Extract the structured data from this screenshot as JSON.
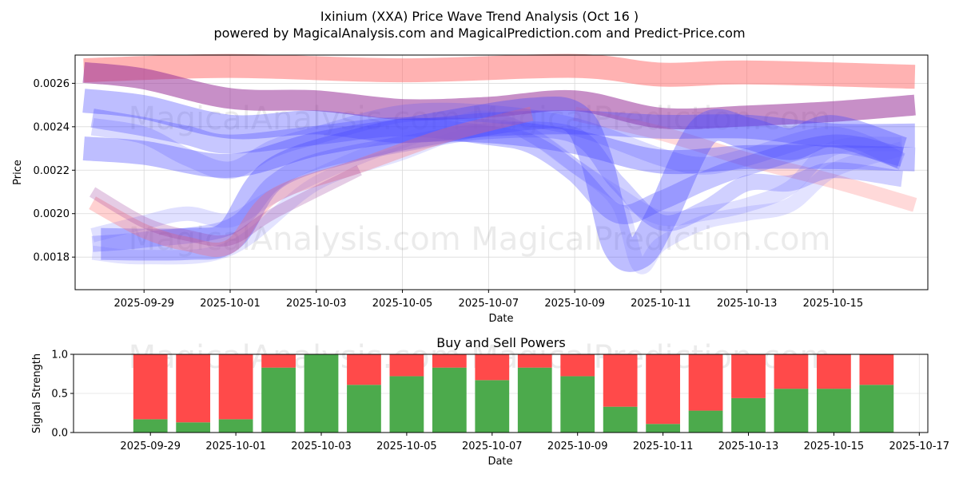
{
  "header": {
    "title": "Ixinium (XXA) Price Wave Trend Analysis (Oct 16 )",
    "subtitle": "powered by MagicalAnalysis.com and MagicalPrediction.com and Predict-Price.com"
  },
  "watermark": {
    "top_text": "MagicalAnalysis.com   MagicalPrediction.com",
    "bottom_text": "MagicalAnalysis.com   MagicalPrediction.com",
    "bar_text": "MagicalAnalysis.com   MagicalPrediction.com"
  },
  "chart_data": [
    {
      "type": "line",
      "title": "",
      "xlabel": "Date",
      "ylabel": "Price",
      "x_start": "2025-09-27",
      "xlim": [
        0.4,
        20.2
      ],
      "ylim": [
        0.00165,
        0.00273
      ],
      "yticks": [
        0.0018,
        0.002,
        0.0022,
        0.0024,
        0.0026
      ],
      "ytick_labels": [
        "0.0018",
        "0.0020",
        "0.0022",
        "0.0024",
        "0.0026"
      ],
      "xticks": [
        2,
        4,
        6,
        8,
        10,
        12,
        14,
        16,
        18
      ],
      "xtick_labels": [
        "2025-09-29",
        "2025-10-01",
        "2025-10-03",
        "2025-10-05",
        "2025-10-07",
        "2025-10-09",
        "2025-10-11",
        "2025-10-13",
        "2025-10-15"
      ],
      "grid": true,
      "series": [
        {
          "name": "red-band-top",
          "color": "#ff6666",
          "opacity": 0.5,
          "width": 30,
          "x": [
            0.6,
            4,
            8,
            12,
            14,
            16,
            19.9
          ],
          "y": [
            0.00266,
            0.00268,
            0.00266,
            0.00268,
            0.00264,
            0.00265,
            0.00263
          ]
        },
        {
          "name": "purple-band",
          "color": "#993399",
          "opacity": 0.55,
          "width": 26,
          "x": [
            0.6,
            2,
            4,
            6,
            8,
            10,
            12,
            14,
            16,
            18,
            19.9
          ],
          "y": [
            0.00265,
            0.00262,
            0.00253,
            0.00252,
            0.00248,
            0.00249,
            0.00252,
            0.00244,
            0.00245,
            0.00247,
            0.0025
          ]
        },
        {
          "name": "red-descend",
          "color": "#ff6666",
          "opacity": 0.25,
          "width": 18,
          "x": [
            12,
            14,
            16,
            18,
            19.9
          ],
          "y": [
            0.00246,
            0.00237,
            0.00225,
            0.00215,
            0.00204
          ]
        },
        {
          "name": "blue-upper",
          "color": "#4444ff",
          "opacity": 0.35,
          "width": 30,
          "x": [
            0.6,
            2,
            4,
            6,
            8,
            10,
            12,
            14,
            16,
            18,
            19.9
          ],
          "y": [
            0.00252,
            0.00249,
            0.0024,
            0.00242,
            0.00238,
            0.00241,
            0.00242,
            0.0024,
            0.0024,
            0.00236,
            0.00236
          ]
        },
        {
          "name": "blue-wide",
          "color": "#4444ff",
          "opacity": 0.35,
          "width": 30,
          "x": [
            0.6,
            2,
            4,
            6,
            8,
            10,
            12,
            14,
            16,
            18,
            19.9
          ],
          "y": [
            0.0023,
            0.00228,
            0.00222,
            0.00232,
            0.00238,
            0.00238,
            0.00233,
            0.00224,
            0.00226,
            0.00226,
            0.00225
          ]
        },
        {
          "name": "blue-wave-1",
          "color": "#4444ff",
          "opacity": 0.3,
          "width": 24,
          "x": [
            0.8,
            2,
            3,
            4,
            6,
            8,
            10,
            11,
            12,
            13,
            14,
            15,
            16,
            18,
            19.6
          ],
          "y": [
            0.00244,
            0.0024,
            0.00236,
            0.00232,
            0.00236,
            0.0024,
            0.00236,
            0.00232,
            0.00219,
            0.002,
            0.00206,
            0.00215,
            0.00222,
            0.00232,
            0.00226
          ]
        },
        {
          "name": "blue-deep-dip",
          "color": "#4444ff",
          "opacity": 0.35,
          "width": 40,
          "x": [
            1,
            3,
            4,
            5,
            7,
            9,
            11,
            12,
            12.5,
            13,
            13.5,
            14,
            15,
            16,
            17,
            18,
            19.6
          ],
          "y": [
            0.00186,
            0.00186,
            0.0019,
            0.00218,
            0.00232,
            0.0024,
            0.00246,
            0.00244,
            0.00225,
            0.00186,
            0.00182,
            0.00198,
            0.00238,
            0.00237,
            0.00232,
            0.00238,
            0.00228
          ]
        },
        {
          "name": "blue-wave-2",
          "color": "#4444ff",
          "opacity": 0.25,
          "width": 20,
          "x": [
            0.8,
            2,
            4,
            5,
            6,
            8,
            10,
            12,
            13,
            14,
            15,
            16,
            17,
            18,
            19.6
          ],
          "y": [
            0.00186,
            0.00188,
            0.00194,
            0.00214,
            0.00224,
            0.00232,
            0.00238,
            0.00236,
            0.00214,
            0.00196,
            0.00202,
            0.00214,
            0.00214,
            0.0022,
            0.00216
          ]
        },
        {
          "name": "blue-wave-3",
          "color": "#6666ff",
          "opacity": 0.2,
          "width": 18,
          "x": [
            0.8,
            2,
            3,
            4,
            5,
            7,
            9,
            10,
            11,
            12,
            13,
            14,
            15,
            16,
            17,
            18,
            19.6
          ],
          "y": [
            0.0019,
            0.00196,
            0.002,
            0.00197,
            0.00208,
            0.00226,
            0.0024,
            0.00244,
            0.00236,
            0.00222,
            0.00209,
            0.00198,
            0.002,
            0.00204,
            0.00212,
            0.0023,
            0.00232
          ]
        },
        {
          "name": "blue-wave-4",
          "color": "#6666ff",
          "opacity": 0.18,
          "width": 18,
          "x": [
            0.8,
            2,
            4,
            6,
            8,
            10,
            11,
            12,
            13,
            13.5,
            14,
            15,
            16,
            17,
            18,
            19.6
          ],
          "y": [
            0.00182,
            0.0018,
            0.00184,
            0.00214,
            0.00228,
            0.00242,
            0.00236,
            0.00222,
            0.00205,
            0.00176,
            0.00186,
            0.00196,
            0.002,
            0.00204,
            0.0022,
            0.0023
          ]
        },
        {
          "name": "red-low",
          "color": "#ff6666",
          "opacity": 0.3,
          "width": 18,
          "x": [
            0.8,
            2,
            3,
            4,
            5,
            7,
            9,
            11
          ],
          "y": [
            0.00205,
            0.00192,
            0.00186,
            0.00185,
            0.00208,
            0.00222,
            0.00236,
            0.00246
          ]
        },
        {
          "name": "purple-low",
          "color": "#993399",
          "opacity": 0.25,
          "width": 14,
          "x": [
            0.8,
            2,
            3,
            4,
            5,
            7
          ],
          "y": [
            0.0021,
            0.00196,
            0.0019,
            0.00188,
            0.002,
            0.0022
          ]
        },
        {
          "name": "blue-wave-5",
          "color": "#4444ff",
          "opacity": 0.2,
          "width": 22,
          "x": [
            0.8,
            2,
            3,
            4,
            5,
            6,
            8,
            10,
            12,
            14,
            15,
            16,
            18,
            19.6
          ],
          "y": [
            0.0024,
            0.00236,
            0.00226,
            0.0022,
            0.0023,
            0.00236,
            0.00246,
            0.00246,
            0.0024,
            0.00226,
            0.00222,
            0.00226,
            0.00236,
            0.00224
          ]
        }
      ]
    },
    {
      "type": "bar",
      "title": "Buy and Sell Powers",
      "xlabel": "Date",
      "ylabel": "Signal Strength",
      "stacked": true,
      "x_start": "2025-09-28",
      "xlim": [
        -0.8,
        19.2
      ],
      "ylim": [
        0,
        1.0
      ],
      "yticks": [
        0.0,
        0.5,
        1.0
      ],
      "ytick_labels": [
        "0.0",
        "0.5",
        "1.0"
      ],
      "xticks": [
        1,
        3,
        5,
        7,
        9,
        11,
        13,
        15,
        17,
        19
      ],
      "xtick_labels": [
        "2025-09-29",
        "2025-10-01",
        "2025-10-03",
        "2025-10-05",
        "2025-10-07",
        "2025-10-09",
        "2025-10-11",
        "2025-10-13",
        "2025-10-15",
        "2025-10-17"
      ],
      "grid": true,
      "x": [
        1,
        2,
        3,
        4,
        5,
        6,
        7,
        8,
        9,
        10,
        11,
        12,
        13,
        14,
        15,
        16,
        17,
        18
      ],
      "series": [
        {
          "name": "Buy",
          "color": "#4caa4c",
          "values": [
            0.17,
            0.13,
            0.17,
            0.83,
            1.0,
            0.61,
            0.72,
            0.83,
            0.67,
            0.83,
            0.72,
            0.33,
            0.11,
            0.28,
            0.44,
            0.56,
            0.56,
            0.61
          ]
        },
        {
          "name": "Sell",
          "color": "#ff4a4a",
          "values": [
            0.83,
            0.87,
            0.83,
            0.17,
            0.0,
            0.39,
            0.28,
            0.17,
            0.33,
            0.17,
            0.28,
            0.67,
            0.89,
            0.72,
            0.56,
            0.44,
            0.44,
            0.39
          ]
        }
      ]
    }
  ]
}
